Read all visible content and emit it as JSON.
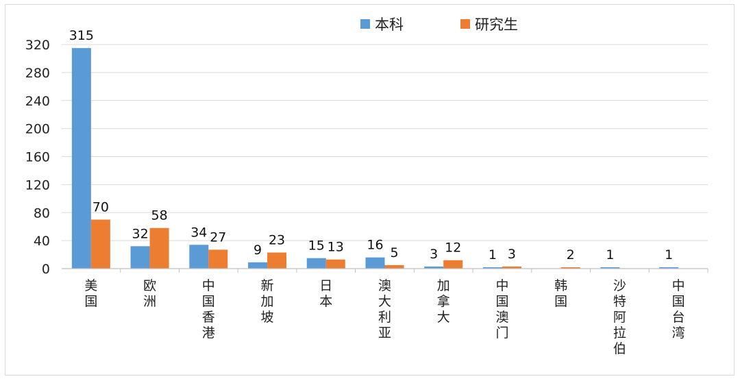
{
  "chart_data": {
    "type": "bar",
    "categories": [
      "美国",
      "欧洲",
      "中国香港",
      "新加坡",
      "日本",
      "澳大利亚",
      "加拿大",
      "中国澳门",
      "韩国",
      "沙特阿拉伯",
      "中国台湾"
    ],
    "series": [
      {
        "name": "本科",
        "color": "#5b9bd5",
        "values": [
          315,
          32,
          34,
          9,
          15,
          16,
          3,
          1,
          null,
          1,
          1
        ]
      },
      {
        "name": "研究生",
        "color": "#ed7d31",
        "values": [
          70,
          58,
          27,
          23,
          13,
          5,
          12,
          3,
          2,
          null,
          null
        ]
      }
    ],
    "yticks": [
      0,
      40,
      80,
      120,
      160,
      200,
      240,
      280,
      320
    ],
    "ylim": [
      0,
      320
    ],
    "grid": true,
    "legend": "top"
  }
}
